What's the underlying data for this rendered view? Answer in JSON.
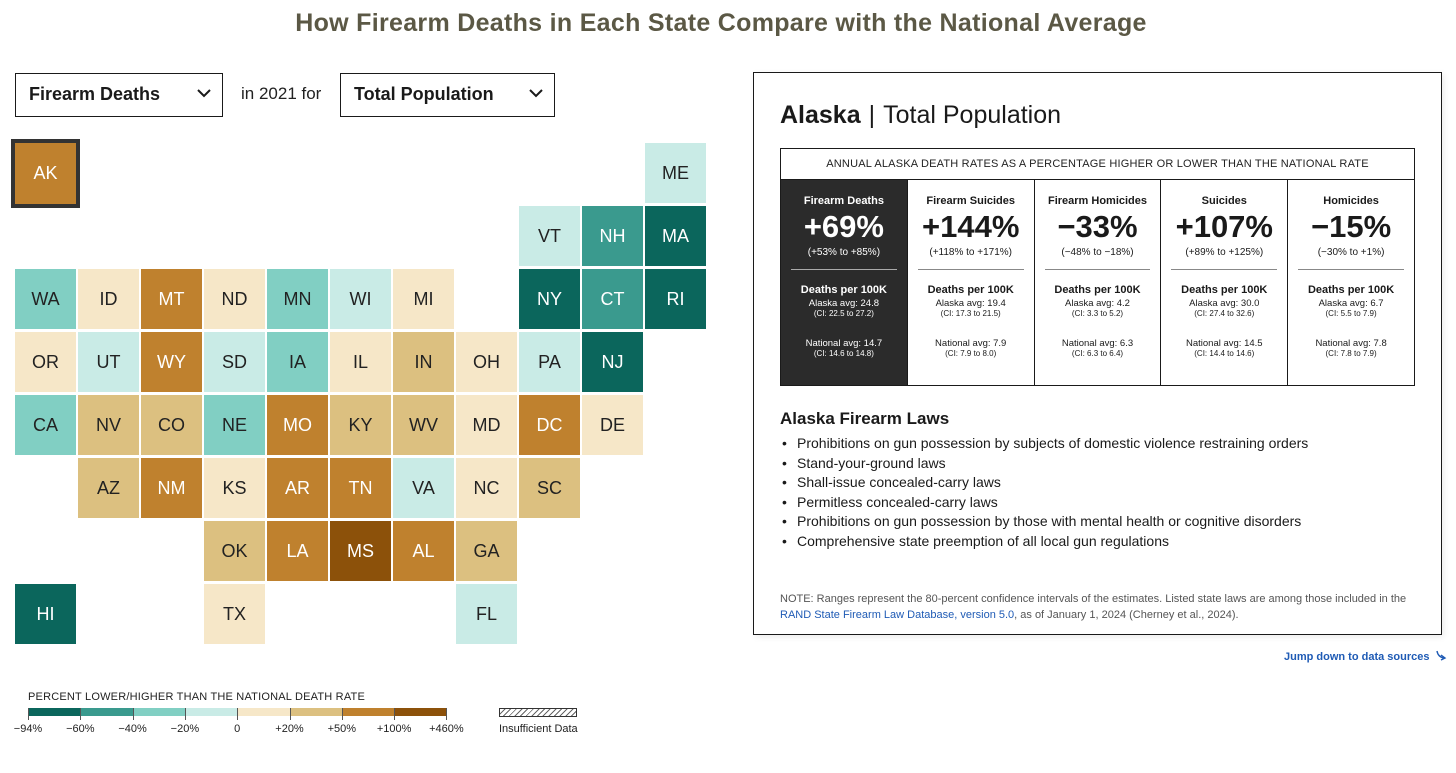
{
  "title": "How Firearm Deaths in Each State Compare with the National Average",
  "controls": {
    "measure": "Firearm Deaths",
    "in_year": "in 2021 for",
    "population": "Total Population"
  },
  "colors": {
    "t1": "#0b665c",
    "t2": "#3a9a8e",
    "t3": "#81cfc3",
    "t4": "#c9ebe6",
    "b1": "#f6e7c8",
    "b2": "#dcc080",
    "b3": "#bf812e",
    "b4": "#8c510a",
    "selected": "#bf812e"
  },
  "states": [
    {
      "abbr": "AK",
      "cls": "b3"
    },
    {
      "abbr": "ME",
      "cls": "t4"
    },
    {
      "abbr": "VT",
      "cls": "t4"
    },
    {
      "abbr": "NH",
      "cls": "t2"
    },
    {
      "abbr": "MA",
      "cls": "t1"
    },
    {
      "abbr": "WA",
      "cls": "t3"
    },
    {
      "abbr": "ID",
      "cls": "b1"
    },
    {
      "abbr": "MT",
      "cls": "b3"
    },
    {
      "abbr": "ND",
      "cls": "b1"
    },
    {
      "abbr": "MN",
      "cls": "t3"
    },
    {
      "abbr": "WI",
      "cls": "t4"
    },
    {
      "abbr": "MI",
      "cls": "b1"
    },
    {
      "abbr": "NY",
      "cls": "t1"
    },
    {
      "abbr": "CT",
      "cls": "t2"
    },
    {
      "abbr": "RI",
      "cls": "t1"
    },
    {
      "abbr": "OR",
      "cls": "b1"
    },
    {
      "abbr": "UT",
      "cls": "t4"
    },
    {
      "abbr": "WY",
      "cls": "b3"
    },
    {
      "abbr": "SD",
      "cls": "t4"
    },
    {
      "abbr": "IA",
      "cls": "t3"
    },
    {
      "abbr": "IL",
      "cls": "b1"
    },
    {
      "abbr": "IN",
      "cls": "b2"
    },
    {
      "abbr": "OH",
      "cls": "b1"
    },
    {
      "abbr": "PA",
      "cls": "t4"
    },
    {
      "abbr": "NJ",
      "cls": "t1"
    },
    {
      "abbr": "CA",
      "cls": "t3"
    },
    {
      "abbr": "NV",
      "cls": "b2"
    },
    {
      "abbr": "CO",
      "cls": "b2"
    },
    {
      "abbr": "NE",
      "cls": "t3"
    },
    {
      "abbr": "MO",
      "cls": "b3"
    },
    {
      "abbr": "KY",
      "cls": "b2"
    },
    {
      "abbr": "WV",
      "cls": "b2"
    },
    {
      "abbr": "MD",
      "cls": "b1"
    },
    {
      "abbr": "DC",
      "cls": "b3"
    },
    {
      "abbr": "DE",
      "cls": "b1"
    },
    {
      "abbr": "AZ",
      "cls": "b2"
    },
    {
      "abbr": "NM",
      "cls": "b3"
    },
    {
      "abbr": "KS",
      "cls": "b1"
    },
    {
      "abbr": "AR",
      "cls": "b3"
    },
    {
      "abbr": "TN",
      "cls": "b3"
    },
    {
      "abbr": "VA",
      "cls": "t4"
    },
    {
      "abbr": "NC",
      "cls": "b1"
    },
    {
      "abbr": "SC",
      "cls": "b2"
    },
    {
      "abbr": "OK",
      "cls": "b2"
    },
    {
      "abbr": "LA",
      "cls": "b3"
    },
    {
      "abbr": "MS",
      "cls": "b4"
    },
    {
      "abbr": "AL",
      "cls": "b3"
    },
    {
      "abbr": "GA",
      "cls": "b2"
    },
    {
      "abbr": "HI",
      "cls": "t1"
    },
    {
      "abbr": "TX",
      "cls": "b1"
    },
    {
      "abbr": "FL",
      "cls": "t4"
    }
  ],
  "legend": {
    "title": "PERCENT LOWER/HIGHER THAN THE NATIONAL DEATH RATE",
    "labels": [
      "−94%",
      "−60%",
      "−40%",
      "−20%",
      "0",
      "+20%",
      "+50%",
      "+100%",
      "+460%"
    ],
    "insufficient": "Insufficient Data"
  },
  "panel": {
    "state": "Alaska",
    "separator": "|",
    "population": "Total Population",
    "table_header": "ANNUAL ALASKA DEATH RATES AS A PERCENTAGE HIGHER OR LOWER THAN THE NATIONAL RATE",
    "deaths_label": "Deaths per 100K",
    "columns": [
      {
        "name": "Firearm Deaths",
        "pct": "+69%",
        "ci": "(+53% to +85%)",
        "state_avg": "Alaska avg: 24.8",
        "state_ci": "(CI: 22.5 to 27.2)",
        "nat_avg": "National avg: 14.7",
        "nat_ci": "(CI: 14.6 to 14.8)"
      },
      {
        "name": "Firearm Suicides",
        "pct": "+144%",
        "ci": "(+118% to +171%)",
        "state_avg": "Alaska avg: 19.4",
        "state_ci": "(CI: 17.3 to 21.5)",
        "nat_avg": "National avg: 7.9",
        "nat_ci": "(CI: 7.9 to 8.0)"
      },
      {
        "name": "Firearm Homicides",
        "pct": "−33%",
        "ci": "(−48% to −18%)",
        "state_avg": "Alaska avg: 4.2",
        "state_ci": "(CI: 3.3 to 5.2)",
        "nat_avg": "National avg: 6.3",
        "nat_ci": "(CI: 6.3 to 6.4)"
      },
      {
        "name": "Suicides",
        "pct": "+107%",
        "ci": "(+89% to +125%)",
        "state_avg": "Alaska avg: 30.0",
        "state_ci": "(CI: 27.4 to 32.6)",
        "nat_avg": "National avg: 14.5",
        "nat_ci": "(CI: 14.4 to 14.6)"
      },
      {
        "name": "Homicides",
        "pct": "−15%",
        "ci": "(−30% to +1%)",
        "state_avg": "Alaska avg: 6.7",
        "state_ci": "(CI: 5.5 to 7.9)",
        "nat_avg": "National avg: 7.8",
        "nat_ci": "(CI: 7.8 to 7.9)"
      }
    ],
    "laws_title": "Alaska Firearm Laws",
    "laws": [
      "Prohibitions on gun possession by subjects of domestic violence restraining orders",
      "Stand-your-ground laws",
      "Shall-issue concealed-carry laws",
      "Permitless concealed-carry laws",
      "Prohibitions on gun possession by those with mental health or cognitive disorders",
      "Comprehensive state preemption of all local gun regulations"
    ],
    "note_prefix": "NOTE: Ranges represent the 80-percent confidence intervals of the estimates. Listed state laws are among those included in the",
    "note_link": "RAND State Firearm Law Database, version 5.0",
    "note_suffix": ", as of January 1, 2024 (Cherney et al., 2024)."
  },
  "jump_link": "Jump down to data sources",
  "jump_icon": "arrow-down-right-icon"
}
